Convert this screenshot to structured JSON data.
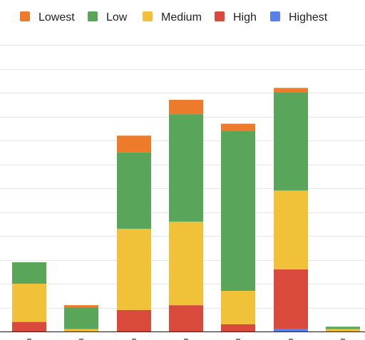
{
  "chart_data": {
    "type": "bar",
    "stacked": true,
    "categories": [
      "",
      "",
      "",
      "",
      "",
      "",
      ""
    ],
    "series": [
      {
        "name": "Highest",
        "color": "#5b7fe8",
        "values": [
          0,
          0,
          0,
          0,
          0,
          1,
          0
        ]
      },
      {
        "name": "High",
        "color": "#d94a3d",
        "values": [
          4,
          0,
          9,
          11,
          3,
          25,
          0
        ]
      },
      {
        "name": "Medium",
        "color": "#f2c13a",
        "values": [
          16,
          1,
          34,
          35,
          14,
          33,
          1
        ]
      },
      {
        "name": "Low",
        "color": "#59a65a",
        "values": [
          9,
          9,
          32,
          45,
          67,
          41,
          1
        ]
      },
      {
        "name": "Lowest",
        "color": "#ee7b2b",
        "values": [
          0,
          1,
          7,
          6,
          3,
          2,
          0
        ]
      }
    ],
    "legend_order": [
      "Lowest",
      "Low",
      "Medium",
      "High",
      "Highest"
    ],
    "legend_position": "top",
    "ylim": [
      0,
      120
    ],
    "grid": true,
    "title": "",
    "xlabel": "",
    "ylabel": ""
  }
}
